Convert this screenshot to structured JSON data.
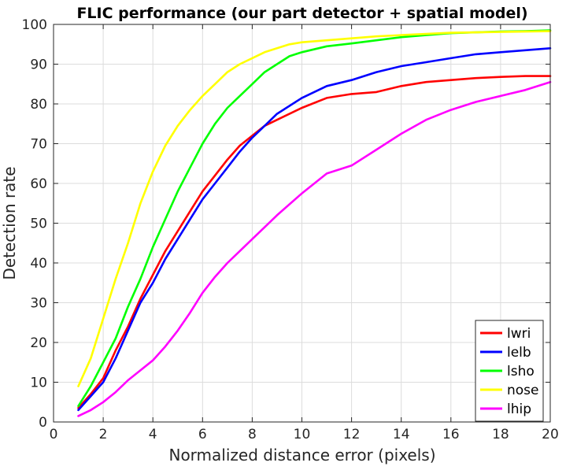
{
  "chart_data": {
    "type": "line",
    "title": "FLIC performance (our part detector + spatial model)",
    "xlabel": "Normalized distance error (pixels)",
    "ylabel": "Detection rate",
    "xlim": [
      0,
      20
    ],
    "ylim": [
      0,
      100
    ],
    "xticks": [
      0,
      2,
      4,
      6,
      8,
      10,
      12,
      14,
      16,
      18,
      20
    ],
    "yticks": [
      0,
      10,
      20,
      30,
      40,
      50,
      60,
      70,
      80,
      90,
      100
    ],
    "grid": true,
    "legend_position": "bottom-right",
    "series": [
      {
        "name": "lwri",
        "color": "#ff0000",
        "x": [
          1,
          1.5,
          2,
          2.5,
          3,
          3.5,
          4,
          4.5,
          5,
          5.5,
          6,
          6.5,
          7,
          7.5,
          8,
          8.5,
          9,
          10,
          11,
          12,
          13,
          14,
          15,
          16,
          17,
          18,
          19,
          20
        ],
        "y": [
          3.5,
          7,
          11,
          18,
          24,
          31,
          37,
          43,
          48,
          53,
          58,
          62,
          66,
          69.5,
          72,
          74.5,
          76,
          79,
          81.5,
          82.5,
          83,
          84.5,
          85.5,
          86,
          86.5,
          86.8,
          87,
          87
        ]
      },
      {
        "name": "lelb",
        "color": "#0000ff",
        "x": [
          1,
          1.5,
          2,
          2.5,
          3,
          3.5,
          4,
          4.5,
          5,
          5.5,
          6,
          6.5,
          7,
          7.5,
          8,
          8.5,
          9,
          10,
          11,
          12,
          13,
          14,
          15,
          16,
          17,
          18,
          19,
          20
        ],
        "y": [
          3,
          6.5,
          10,
          16,
          23,
          30,
          35,
          41,
          46,
          51,
          56,
          60,
          64,
          68,
          71.5,
          74.5,
          77.5,
          81.5,
          84.5,
          86,
          88,
          89.5,
          90.5,
          91.5,
          92.5,
          93,
          93.5,
          94
        ]
      },
      {
        "name": "lsho",
        "color": "#00ff00",
        "x": [
          1,
          1.5,
          2,
          2.5,
          3,
          3.5,
          4,
          4.5,
          5,
          5.5,
          6,
          6.5,
          7,
          7.5,
          8,
          8.5,
          9,
          9.5,
          10,
          11,
          12,
          13,
          14,
          15,
          16,
          17,
          18,
          19,
          20
        ],
        "y": [
          4,
          9,
          15,
          21,
          29,
          36,
          44,
          51,
          58,
          64,
          70,
          75,
          79,
          82,
          85,
          88,
          90,
          92,
          93,
          94.5,
          95.2,
          96,
          96.8,
          97.3,
          97.8,
          98,
          98.2,
          98.3,
          98.5
        ]
      },
      {
        "name": "nose",
        "color": "#ffff00",
        "x": [
          1,
          1.5,
          2,
          2.5,
          3,
          3.5,
          4,
          4.5,
          5,
          5.5,
          6,
          6.5,
          7,
          7.5,
          8,
          8.5,
          9,
          9.5,
          10,
          11,
          12,
          13,
          14,
          15,
          16,
          17,
          18,
          19,
          20
        ],
        "y": [
          9,
          16,
          26,
          36,
          45,
          55,
          63,
          69.5,
          74.5,
          78.5,
          82,
          85,
          88,
          90,
          91.5,
          93,
          94,
          95,
          95.5,
          96,
          96.5,
          97,
          97.3,
          97.6,
          97.9,
          98,
          98.1,
          98.2,
          98.3
        ]
      },
      {
        "name": "lhip",
        "color": "#ff00ff",
        "x": [
          1,
          1.5,
          2,
          2.5,
          3,
          3.5,
          4,
          4.5,
          5,
          5.5,
          6,
          6.5,
          7,
          7.5,
          8,
          8.5,
          9,
          10,
          11,
          12,
          13,
          14,
          15,
          16,
          17,
          18,
          19,
          20
        ],
        "y": [
          1.5,
          3,
          5,
          7.5,
          10.5,
          13,
          15.5,
          19,
          23,
          27.5,
          32.5,
          36.5,
          40,
          43,
          46,
          49,
          52,
          57.5,
          62.5,
          64.5,
          68.5,
          72.5,
          76,
          78.5,
          80.5,
          82,
          83.5,
          85.5
        ]
      }
    ]
  }
}
